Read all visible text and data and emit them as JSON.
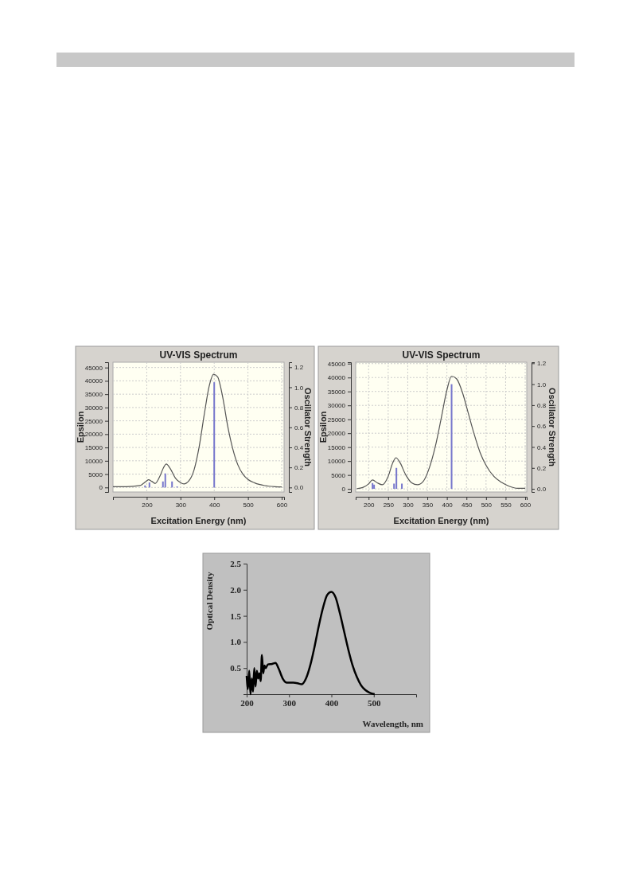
{
  "chart_data": [
    {
      "type": "line",
      "title": "UV-VIS Spectrum",
      "xlabel": "Excitation Energy (nm)",
      "ylabel": "Epsilon",
      "y2label": "Oscillator Strength",
      "grid": true,
      "xlim": [
        100,
        607
      ],
      "xticks": [
        200,
        300,
        400,
        500,
        600
      ],
      "ylim": [
        -1700,
        47000
      ],
      "yticks": [
        0,
        5000,
        10000,
        15000,
        20000,
        25000,
        30000,
        35000,
        40000,
        45000
      ],
      "y2lim": [
        -0.045,
        1.25
      ],
      "y2ticks": [
        {
          "value": 0,
          "label": "0.0"
        },
        {
          "value": 0.2,
          "label": "0.2"
        },
        {
          "value": 0.4,
          "label": "0.4"
        },
        {
          "value": 0.6,
          "label": "0.6"
        },
        {
          "value": 0.8,
          "label": "0.8"
        },
        {
          "value": 1,
          "label": "1.0"
        },
        {
          "value": 1.2,
          "label": "1.2"
        }
      ],
      "series": [
        {
          "color": "#555555",
          "x": [
            100,
            140,
            180,
            190,
            200,
            205,
            215,
            225,
            240,
            250,
            258,
            270,
            285,
            300,
            310,
            325,
            340,
            355,
            370,
            385,
            398,
            410,
            425,
            440,
            455,
            470,
            485,
            500,
            520,
            550,
            580,
            600
          ],
          "values": [
            300,
            300,
            700,
            1500,
            2500,
            2900,
            2300,
            1500,
            4500,
            7500,
            8800,
            7000,
            3500,
            1800,
            1300,
            2500,
            6500,
            15000,
            27000,
            38000,
            42500,
            41500,
            34000,
            23000,
            14500,
            8500,
            5000,
            3000,
            1700,
            700,
            300,
            200
          ]
        },
        {
          "type": "bar",
          "axis": "y2",
          "color": "#7777cc",
          "x": [
            195,
            208,
            248,
            255,
            275,
            290,
            400
          ],
          "values": [
            0.02,
            0.05,
            0.06,
            0.14,
            0.06,
            0.01,
            1.05
          ]
        }
      ]
    },
    {
      "type": "line",
      "title": "UV-VIS Spectrum",
      "xlabel": "Excitation Energy (nm)",
      "ylabel": "Epsilon",
      "y2label": "Oscillator Strength",
      "grid": true,
      "xlim": [
        167,
        604
      ],
      "xticks": [
        200,
        250,
        300,
        350,
        400,
        450,
        500,
        550,
        600
      ],
      "ylim": [
        -1100,
        45500
      ],
      "yticks": [
        0,
        5000,
        10000,
        15000,
        20000,
        25000,
        30000,
        35000,
        40000,
        45000
      ],
      "y2lim": [
        -0.03,
        1.21
      ],
      "y2ticks": [
        {
          "value": 0,
          "label": "0.0"
        },
        {
          "value": 0.2,
          "label": "0.2"
        },
        {
          "value": 0.4,
          "label": "0.4"
        },
        {
          "value": 0.6,
          "label": "0.6"
        },
        {
          "value": 0.8,
          "label": "0.8"
        },
        {
          "value": 1,
          "label": "1.0"
        },
        {
          "value": 1.2,
          "label": "1.2"
        }
      ],
      "series": [
        {
          "color": "#555555",
          "x": [
            170,
            185,
            200,
            210,
            222,
            235,
            250,
            262,
            270,
            280,
            295,
            310,
            325,
            340,
            355,
            370,
            385,
            400,
            412,
            425,
            440,
            455,
            470,
            485,
            500,
            520,
            540,
            560,
            580,
            600
          ],
          "values": [
            100,
            500,
            1800,
            3200,
            2200,
            1500,
            4500,
            9500,
            11200,
            9500,
            5000,
            2200,
            1500,
            2800,
            7500,
            15000,
            25000,
            35500,
            40500,
            39500,
            34500,
            27000,
            19500,
            13000,
            8500,
            4500,
            2300,
            900,
            200,
            200
          ]
        },
        {
          "type": "bar",
          "axis": "y2",
          "color": "#7777cc",
          "x": [
            210,
            214,
            265,
            271,
            285,
            412
          ],
          "values": [
            0.055,
            0.04,
            0.05,
            0.2,
            0.05,
            1.0
          ]
        }
      ]
    },
    {
      "type": "line",
      "xlabel": "Wavelength, nm",
      "ylabel": "Optical Density",
      "grid": false,
      "xlim": [
        200,
        600
      ],
      "xticks": [
        200,
        300,
        400,
        500
      ],
      "ylim": [
        0,
        2.5
      ],
      "yticks": [
        {
          "value": 0.5,
          "label": "0.5"
        },
        {
          "value": 1,
          "label": "1.0"
        },
        {
          "value": 1.5,
          "label": "1.5"
        },
        {
          "value": 2,
          "label": "2.0"
        },
        {
          "value": 2.5,
          "label": "2.5"
        }
      ],
      "series": [
        {
          "color": "#000000",
          "x": [
            200,
            203,
            206,
            209,
            212,
            215,
            218,
            221,
            224,
            227,
            230,
            233,
            236,
            239,
            242,
            245,
            250,
            260,
            268,
            275,
            285,
            295,
            310,
            320,
            330,
            340,
            350,
            360,
            370,
            380,
            390,
            400,
            410,
            420,
            430,
            440,
            450,
            460,
            470,
            480,
            490,
            502
          ],
          "values": [
            0.35,
            0.1,
            0.45,
            0.0,
            0.3,
            0.05,
            0.5,
            0.15,
            0.45,
            0.3,
            0.4,
            0.25,
            0.75,
            0.4,
            0.55,
            0.5,
            0.57,
            0.58,
            0.6,
            0.5,
            0.3,
            0.22,
            0.22,
            0.21,
            0.19,
            0.3,
            0.55,
            0.9,
            1.3,
            1.65,
            1.9,
            1.96,
            1.85,
            1.55,
            1.2,
            0.85,
            0.55,
            0.33,
            0.17,
            0.08,
            0.03,
            0.0
          ]
        }
      ]
    }
  ]
}
